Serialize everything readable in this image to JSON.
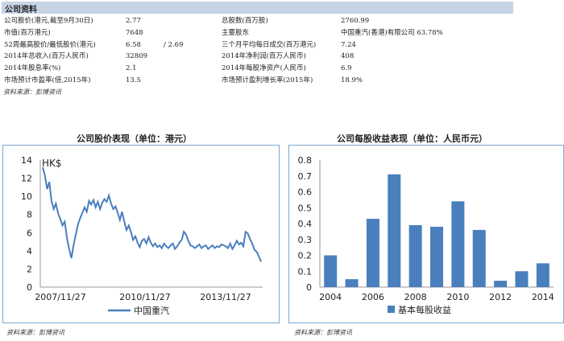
{
  "header": {
    "title": "公司资料"
  },
  "info_rows": [
    {
      "l1": "公司股价(港元,截至9月30日)",
      "v1": "2.77",
      "v1b": "",
      "l2": "总股数(百万股)",
      "v2": "2760.99"
    },
    {
      "l1": "市值(百万港元)",
      "v1": "7648",
      "v1b": "",
      "l2": "主要股东",
      "v2": "中国重汽(香港)有限公司 63.78%"
    },
    {
      "l1": "52周最高股价/最低股价(港元)",
      "v1": "6.58",
      "v1b": "/   2.69",
      "l2": "三个月平均每日成交(百万港元)",
      "v2": "7.24"
    },
    {
      "l1": "2014年总收入(百万人民币)",
      "v1": "32809",
      "v1b": "",
      "l2": "2014年净利润(百万人民币)",
      "v2": "408"
    },
    {
      "l1": "2014年股息率(%)",
      "v1": "2.1",
      "v1b": "",
      "l2": "2014年每股净资产(人民币)",
      "v2": "6.9"
    },
    {
      "l1": "市场预计市盈率(倍,2015年)",
      "v1": "13.5",
      "v1b": "",
      "l2": "市场预计盈利增长率(2015年)",
      "v2": "18.9%"
    }
  ],
  "source_top": "资料来源：彭博资讯",
  "source_left": "资料来源：彭博资讯",
  "source_right": "资料来源：彭博资讯",
  "chart_data": [
    {
      "type": "line",
      "title": "公司股价表现（单位：港元）",
      "ylabel": "HK$",
      "ylim": [
        0,
        14
      ],
      "yticks": [
        0,
        2,
        4,
        6,
        8,
        10,
        12,
        14
      ],
      "xtick_labels": [
        "2007/11/27",
        "2010/11/27",
        "2013/11/27"
      ],
      "series": [
        {
          "name": "中国重汽",
          "color": "#4a7fbd",
          "values": [
            13.2,
            12.3,
            10.8,
            11.6,
            9.5,
            8.6,
            9.2,
            8.1,
            7.5,
            6.8,
            7.2,
            5.4,
            4.2,
            3.2,
            4.6,
            5.8,
            6.9,
            7.6,
            8.2,
            8.8,
            8.3,
            9.5,
            9.1,
            9.6,
            8.8,
            9.4,
            8.6,
            9.3,
            9.7,
            9.4,
            10.1,
            9.2,
            8.6,
            8.9,
            8.2,
            7.4,
            8.3,
            7.2,
            6.3,
            6.8,
            6.1,
            5.2,
            5.6,
            4.9,
            4.4,
            5.1,
            5.3,
            4.8,
            5.5,
            4.9,
            4.5,
            4.8,
            4.4,
            4.6,
            4.3,
            4.8,
            4.5,
            4.3,
            4.6,
            4.8,
            4.2,
            4.5,
            4.9,
            5.2,
            6.1,
            5.8,
            5.1,
            4.6,
            4.5,
            4.3,
            4.5,
            4.7,
            4.3,
            4.5,
            4.6,
            4.2,
            4.4,
            4.6,
            4.3,
            4.5,
            4.4,
            4.7,
            4.6,
            4.5,
            4.3,
            4.8,
            4.2,
            4.6,
            5.1,
            4.7,
            4.9,
            4.5,
            6.1,
            5.9,
            5.3,
            4.8,
            4.1,
            3.9,
            3.4,
            2.8
          ]
        }
      ]
    },
    {
      "type": "bar",
      "title": "公司每股收益表现（单位：人民币元）",
      "ylim": [
        0,
        0.8
      ],
      "yticks": [
        0,
        0.1,
        0.2,
        0.3,
        0.4,
        0.5,
        0.6,
        0.7,
        0.8
      ],
      "categories": [
        "2004",
        "2005",
        "2006",
        "2007",
        "2008",
        "2009",
        "2010",
        "2011",
        "2012",
        "2013",
        "2014"
      ],
      "xtick_labels": [
        "2004",
        "2006",
        "2008",
        "2010",
        "2012",
        "2014"
      ],
      "series": [
        {
          "name": "基本每股收益",
          "color": "#4a7fbd",
          "values": [
            0.2,
            0.05,
            0.43,
            0.71,
            0.39,
            0.38,
            0.54,
            0.36,
            0.04,
            0.1,
            0.15
          ]
        }
      ]
    }
  ]
}
